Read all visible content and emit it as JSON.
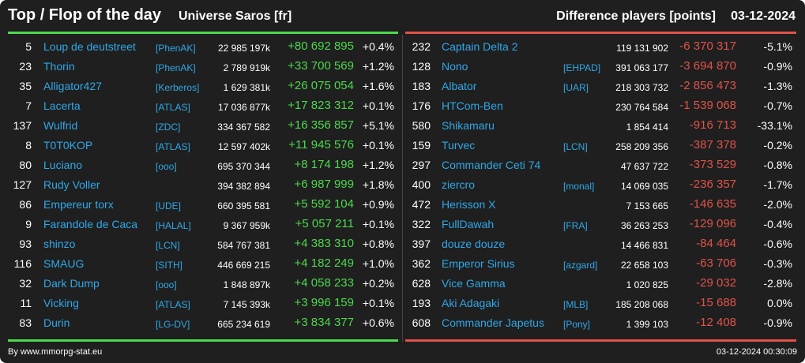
{
  "header": {
    "title": "Top / Flop of the day",
    "universe": "Universe Saros [fr]",
    "subtitle": "Difference players [points]",
    "date": "03-12-2024"
  },
  "colors": {
    "positive": "#4cd84c",
    "negative": "#e0524a",
    "link": "#2fa8e8",
    "background": "#1f1f1f"
  },
  "top": [
    {
      "rank": "5",
      "name": "Loup de deutstreet",
      "alliance": "[PhenAK]",
      "points": "22 985 197k",
      "diff": "+80 692 895",
      "pct": "+0.4%"
    },
    {
      "rank": "23",
      "name": "Thorin",
      "alliance": "[PhenAK]",
      "points": "2 789 919k",
      "diff": "+33 700 569",
      "pct": "+1.2%"
    },
    {
      "rank": "35",
      "name": "Alligator427",
      "alliance": "[Kerberos]",
      "points": "1 629 381k",
      "diff": "+26 075 054",
      "pct": "+1.6%"
    },
    {
      "rank": "7",
      "name": "Lacerta",
      "alliance": "[ATLAS]",
      "points": "17 036 877k",
      "diff": "+17 823 312",
      "pct": "+0.1%"
    },
    {
      "rank": "137",
      "name": "Wulfrid",
      "alliance": "[ZDC]",
      "points": "334 367 582",
      "diff": "+16 356 857",
      "pct": "+5.1%"
    },
    {
      "rank": "8",
      "name": "T0T0KOP",
      "alliance": "[ATLAS]",
      "points": "12 597 402k",
      "diff": "+11 945 576",
      "pct": "+0.1%"
    },
    {
      "rank": "80",
      "name": "Luciano",
      "alliance": "[ooo]",
      "points": "695 370 344",
      "diff": "+8 174 198",
      "pct": "+1.2%"
    },
    {
      "rank": "127",
      "name": "Rudy Voller",
      "alliance": "",
      "points": "394 382 894",
      "diff": "+6 987 999",
      "pct": "+1.8%"
    },
    {
      "rank": "86",
      "name": "Empereur torx",
      "alliance": "[UDE]",
      "points": "660 395 581",
      "diff": "+5 592 104",
      "pct": "+0.9%"
    },
    {
      "rank": "9",
      "name": "Farandole de Caca",
      "alliance": "[HALAL]",
      "points": "9 367 959k",
      "diff": "+5 057 211",
      "pct": "+0.1%"
    },
    {
      "rank": "93",
      "name": "shinzo",
      "alliance": "[LCN]",
      "points": "584 767 381",
      "diff": "+4 383 310",
      "pct": "+0.8%"
    },
    {
      "rank": "116",
      "name": "SMAUG",
      "alliance": "[SITH]",
      "points": "446 669 215",
      "diff": "+4 182 249",
      "pct": "+1.0%"
    },
    {
      "rank": "32",
      "name": "Dark Dump",
      "alliance": "[ooo]",
      "points": "1 848 897k",
      "diff": "+4 058 233",
      "pct": "+0.2%"
    },
    {
      "rank": "11",
      "name": "Vicking",
      "alliance": "[ATLAS]",
      "points": "7 145 393k",
      "diff": "+3 996 159",
      "pct": "+0.1%"
    },
    {
      "rank": "83",
      "name": "Durin",
      "alliance": "[LG-DV]",
      "points": "665 234 619",
      "diff": "+3 834 377",
      "pct": "+0.6%"
    }
  ],
  "flop": [
    {
      "rank": "232",
      "name": "Captain Delta 2",
      "alliance": "",
      "points": "119 131 902",
      "diff": "-6 370 317",
      "pct": "-5.1%"
    },
    {
      "rank": "128",
      "name": "Nono",
      "alliance": "[EHPAD]",
      "points": "391 063 177",
      "diff": "-3 694 870",
      "pct": "-0.9%"
    },
    {
      "rank": "183",
      "name": "Albator",
      "alliance": "[UAR]",
      "points": "218 303 732",
      "diff": "-2 856 473",
      "pct": "-1.3%"
    },
    {
      "rank": "176",
      "name": "HTCom-Ben",
      "alliance": "",
      "points": "230 764 584",
      "diff": "-1 539 068",
      "pct": "-0.7%"
    },
    {
      "rank": "580",
      "name": "Shikamaru",
      "alliance": "",
      "points": "1 854 414",
      "diff": "-916 713",
      "pct": "-33.1%"
    },
    {
      "rank": "159",
      "name": "Turvec",
      "alliance": "[LCN]",
      "points": "258 209 356",
      "diff": "-387 378",
      "pct": "-0.2%"
    },
    {
      "rank": "297",
      "name": "Commander Ceti 74",
      "alliance": "",
      "points": "47 637 722",
      "diff": "-373 529",
      "pct": "-0.8%"
    },
    {
      "rank": "400",
      "name": "ziercro",
      "alliance": "[monal]",
      "points": "14 069 035",
      "diff": "-236 357",
      "pct": "-1.7%"
    },
    {
      "rank": "472",
      "name": "Herisson X",
      "alliance": "",
      "points": "7 153 665",
      "diff": "-146 635",
      "pct": "-2.0%"
    },
    {
      "rank": "322",
      "name": "FullDawah",
      "alliance": "[FRA]",
      "points": "36 263 253",
      "diff": "-129 096",
      "pct": "-0.4%"
    },
    {
      "rank": "397",
      "name": "douze douze",
      "alliance": "",
      "points": "14 466 831",
      "diff": "-84 464",
      "pct": "-0.6%"
    },
    {
      "rank": "362",
      "name": "Emperor Sirius",
      "alliance": "[azgard]",
      "points": "22 658 103",
      "diff": "-63 706",
      "pct": "-0.3%"
    },
    {
      "rank": "628",
      "name": "Vice Gamma",
      "alliance": "",
      "points": "1 020 825",
      "diff": "-29 032",
      "pct": "-2.8%"
    },
    {
      "rank": "193",
      "name": "Aki Adagaki",
      "alliance": "[MLB]",
      "points": "185 208 068",
      "diff": "-15 688",
      "pct": "0.0%"
    },
    {
      "rank": "608",
      "name": "Commander Japetus",
      "alliance": "[Pony]",
      "points": "1 399 103",
      "diff": "-12 408",
      "pct": "-0.9%"
    }
  ],
  "footer": {
    "credit": "By www.mmorpg-stat.eu",
    "timestamp": "03-12-2024 00:30:09"
  }
}
